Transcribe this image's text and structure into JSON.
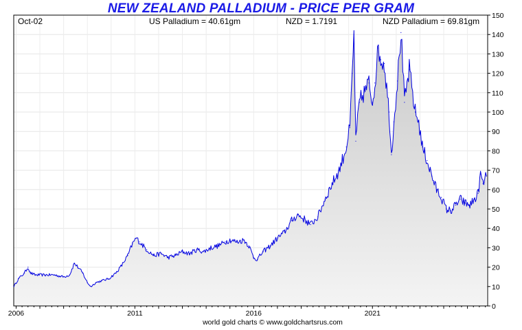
{
  "chart_data": {
    "type": "area",
    "title": "NEW ZEALAND PALLADIUM - PRICE PER GRAM",
    "date_label": "Oct-02",
    "stats": {
      "us_palladium": "US Palladium = 40.61gm",
      "nzd": "NZD = 1.7191",
      "nzd_palladium": "NZD Palladium = 69.81gm"
    },
    "footer": "world gold charts © www.goldchartsrus.com",
    "xlabel": "",
    "ylabel": "",
    "xlim": [
      2005.9,
      2025.85
    ],
    "ylim": [
      0,
      150
    ],
    "ytick_step": 10,
    "x_tick_labels": [
      {
        "label": "2006",
        "x": 2006.0
      },
      {
        "label": "2011",
        "x": 2011.0
      },
      {
        "label": "2016",
        "x": 2016.0
      },
      {
        "label": "2021",
        "x": 2021.0
      }
    ],
    "grid": true,
    "line_color": "#0000e0",
    "series": [
      {
        "name": "NZD Palladium per gram",
        "points": [
          [
            2005.9,
            10
          ],
          [
            2006.1,
            14
          ],
          [
            2006.35,
            17
          ],
          [
            2006.5,
            20
          ],
          [
            2006.6,
            17
          ],
          [
            2006.8,
            16
          ],
          [
            2007.2,
            16
          ],
          [
            2007.6,
            16
          ],
          [
            2008.0,
            15
          ],
          [
            2008.25,
            16
          ],
          [
            2008.45,
            22
          ],
          [
            2008.6,
            20
          ],
          [
            2008.8,
            17
          ],
          [
            2009.0,
            12
          ],
          [
            2009.15,
            10
          ],
          [
            2009.35,
            12
          ],
          [
            2009.6,
            13
          ],
          [
            2009.9,
            14
          ],
          [
            2010.2,
            17
          ],
          [
            2010.45,
            21
          ],
          [
            2010.7,
            26
          ],
          [
            2010.9,
            32
          ],
          [
            2011.05,
            35
          ],
          [
            2011.2,
            33
          ],
          [
            2011.5,
            29
          ],
          [
            2011.8,
            26
          ],
          [
            2012.1,
            27
          ],
          [
            2012.4,
            25
          ],
          [
            2012.7,
            26
          ],
          [
            2013.0,
            28
          ],
          [
            2013.3,
            27
          ],
          [
            2013.6,
            29
          ],
          [
            2013.9,
            28
          ],
          [
            2014.2,
            30
          ],
          [
            2014.5,
            31
          ],
          [
            2014.8,
            33
          ],
          [
            2015.0,
            34
          ],
          [
            2015.3,
            33
          ],
          [
            2015.6,
            34
          ],
          [
            2015.8,
            31
          ],
          [
            2016.0,
            25
          ],
          [
            2016.15,
            24
          ],
          [
            2016.4,
            28
          ],
          [
            2016.7,
            31
          ],
          [
            2017.0,
            35
          ],
          [
            2017.3,
            38
          ],
          [
            2017.6,
            44
          ],
          [
            2017.85,
            47
          ],
          [
            2018.1,
            45
          ],
          [
            2018.4,
            42
          ],
          [
            2018.7,
            46
          ],
          [
            2019.0,
            55
          ],
          [
            2019.3,
            63
          ],
          [
            2019.6,
            70
          ],
          [
            2019.9,
            82
          ],
          [
            2020.05,
            92
          ],
          [
            2020.15,
            120
          ],
          [
            2020.22,
            140
          ],
          [
            2020.3,
            85
          ],
          [
            2020.45,
            105
          ],
          [
            2020.65,
            110
          ],
          [
            2020.85,
            115
          ],
          [
            2021.0,
            105
          ],
          [
            2021.1,
            115
          ],
          [
            2021.25,
            133
          ],
          [
            2021.35,
            127
          ],
          [
            2021.5,
            125
          ],
          [
            2021.7,
            100
          ],
          [
            2021.8,
            78
          ],
          [
            2021.9,
            95
          ],
          [
            2022.05,
            116
          ],
          [
            2022.2,
            141
          ],
          [
            2022.35,
            105
          ],
          [
            2022.55,
            122
          ],
          [
            2022.8,
            100
          ],
          [
            2022.95,
            95
          ],
          [
            2023.1,
            82
          ],
          [
            2023.3,
            75
          ],
          [
            2023.5,
            67
          ],
          [
            2023.7,
            60
          ],
          [
            2023.9,
            56
          ],
          [
            2024.1,
            50
          ],
          [
            2024.3,
            49
          ],
          [
            2024.5,
            52
          ],
          [
            2024.7,
            55
          ],
          [
            2024.9,
            53
          ],
          [
            2025.1,
            52
          ],
          [
            2025.3,
            55
          ],
          [
            2025.45,
            58
          ],
          [
            2025.55,
            68
          ],
          [
            2025.65,
            63
          ],
          [
            2025.8,
            67
          ]
        ]
      }
    ]
  }
}
